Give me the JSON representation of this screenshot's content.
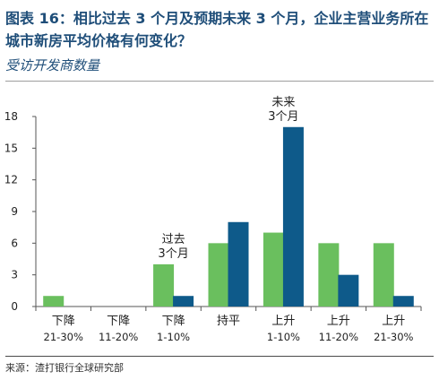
{
  "header": {
    "title": "图表 16：相比过去 3 个月及预期未来 3 个月，企业主营业务所在城市新房平均价格有何变化？",
    "subtitle": "受访开发商数量"
  },
  "footer": {
    "source": "来源：渣打银行全球研究部"
  },
  "colors": {
    "past": "#6abf5e",
    "future": "#0e5a8a"
  },
  "chart_data": {
    "type": "bar",
    "categories": [
      [
        "下降",
        "21-30%"
      ],
      [
        "下降",
        "11-20%"
      ],
      [
        "下降",
        "1-10%"
      ],
      [
        "持平",
        ""
      ],
      [
        "上升",
        "1-10%"
      ],
      [
        "上升",
        "11-20%"
      ],
      [
        "上升",
        "21-30%"
      ]
    ],
    "series": [
      {
        "name": "过去3个月",
        "values": [
          1,
          0,
          4,
          6,
          7,
          6,
          6
        ]
      },
      {
        "name": "未来3个月",
        "values": [
          0,
          0,
          1,
          8,
          17,
          3,
          1
        ]
      }
    ],
    "ylim": [
      0,
      18
    ],
    "yticks": [
      0,
      3,
      6,
      9,
      12,
      15,
      18
    ],
    "annotations": [
      {
        "category_index": 2,
        "lines": [
          "过去",
          "3个月"
        ]
      },
      {
        "category_index": 4,
        "lines": [
          "未来",
          "3个月"
        ]
      }
    ]
  }
}
